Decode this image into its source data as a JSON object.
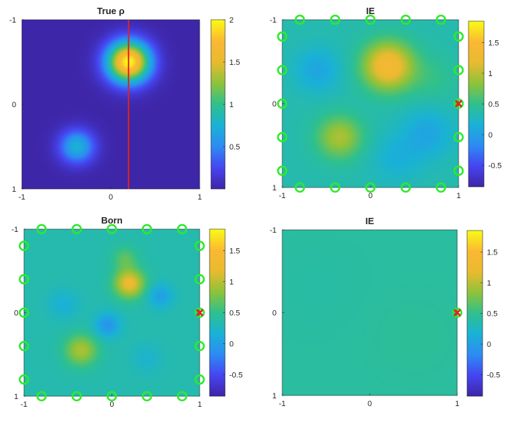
{
  "colors": {
    "parula": [
      "#3e26a8",
      "#4646f2",
      "#2d8cf3",
      "#1ab2d6",
      "#2fc08e",
      "#8dc33a",
      "#e9ba2f",
      "#fab834",
      "#f9fb15"
    ],
    "marker": "#2dea2d",
    "source": "#e0241c",
    "cut_line": "#e0241c"
  },
  "chart_data": [
    {
      "type": "heatmap",
      "title": "True ρ",
      "xticks": [
        "-1",
        "0",
        "1"
      ],
      "yticks": [
        "-1",
        "0",
        "1"
      ],
      "xlim": [
        -1,
        1
      ],
      "ylim": [
        -1,
        1
      ],
      "clim": [
        0,
        2
      ],
      "colorbar_ticks": [
        "0.5",
        "1",
        "1.5",
        "2"
      ],
      "blobs": [
        {
          "x": 0.2,
          "y": -0.5,
          "amp": 2.0,
          "sigma": 0.17
        },
        {
          "x": -0.38,
          "y": 0.5,
          "amp": 0.75,
          "sigma": 0.14
        }
      ],
      "vertical_line_x": 0.2
    },
    {
      "type": "heatmap",
      "title": "IE",
      "xticks": [
        "-1",
        "0",
        "1"
      ],
      "yticks": [
        "-1",
        "0",
        "1"
      ],
      "xlim": [
        -1,
        1
      ],
      "ylim": [
        -1,
        1
      ],
      "clim": [
        -0.85,
        1.85
      ],
      "colorbar_ticks": [
        "-0.5",
        "0",
        "0.5",
        "1",
        "1.5"
      ],
      "base": 0.35,
      "blobs": [
        {
          "x": 0.2,
          "y": -0.45,
          "amp": 1.05,
          "sigma": 0.2
        },
        {
          "x": -0.35,
          "y": 0.4,
          "amp": 0.6,
          "sigma": 0.18
        },
        {
          "x": -0.6,
          "y": -0.4,
          "amp": -0.3,
          "sigma": 0.18
        },
        {
          "x": 0.65,
          "y": 0.35,
          "amp": -0.3,
          "sigma": 0.2
        },
        {
          "x": 0.3,
          "y": 0.65,
          "amp": -0.2,
          "sigma": 0.2
        },
        {
          "x": 0.7,
          "y": -0.3,
          "amp": 0.15,
          "sigma": 0.2
        }
      ],
      "markers": [
        {
          "x": -0.8,
          "y": -1
        },
        {
          "x": -0.4,
          "y": -1
        },
        {
          "x": 0,
          "y": -1
        },
        {
          "x": 0.4,
          "y": -1
        },
        {
          "x": 0.8,
          "y": -1
        },
        {
          "x": -0.8,
          "y": 1
        },
        {
          "x": -0.4,
          "y": 1
        },
        {
          "x": 0,
          "y": 1
        },
        {
          "x": 0.4,
          "y": 1
        },
        {
          "x": 0.8,
          "y": 1
        },
        {
          "x": -1,
          "y": -0.8
        },
        {
          "x": -1,
          "y": -0.4
        },
        {
          "x": -1,
          "y": 0
        },
        {
          "x": -1,
          "y": 0.4
        },
        {
          "x": -1,
          "y": 0.8
        },
        {
          "x": 1,
          "y": -0.8
        },
        {
          "x": 1,
          "y": -0.4
        },
        {
          "x": 1,
          "y": 0.4
        },
        {
          "x": 1,
          "y": 0.8
        }
      ],
      "source": {
        "x": 1,
        "y": 0
      }
    },
    {
      "type": "heatmap",
      "title": "Born",
      "xticks": [
        "-1",
        "0",
        "1"
      ],
      "yticks": [
        "-1",
        "0",
        "1"
      ],
      "xlim": [
        -1,
        1
      ],
      "ylim": [
        -1,
        1
      ],
      "clim": [
        -0.85,
        1.85
      ],
      "colorbar_ticks": [
        "-0.5",
        "0",
        "0.5",
        "1",
        "1.5"
      ],
      "base": 0.35,
      "blobs": [
        {
          "x": 0.2,
          "y": -0.35,
          "amp": 0.9,
          "sigma": 0.12
        },
        {
          "x": 0.15,
          "y": -0.65,
          "amp": 0.3,
          "sigma": 0.1
        },
        {
          "x": -0.35,
          "y": 0.45,
          "amp": 0.6,
          "sigma": 0.13
        },
        {
          "x": -0.05,
          "y": 0.15,
          "amp": -0.45,
          "sigma": 0.1
        },
        {
          "x": 0.55,
          "y": -0.2,
          "amp": -0.35,
          "sigma": 0.1
        },
        {
          "x": -0.55,
          "y": -0.1,
          "amp": -0.2,
          "sigma": 0.12
        },
        {
          "x": 0.4,
          "y": 0.55,
          "amp": -0.15,
          "sigma": 0.12
        }
      ],
      "markers": [
        {
          "x": -0.8,
          "y": -1
        },
        {
          "x": -0.4,
          "y": -1
        },
        {
          "x": 0,
          "y": -1
        },
        {
          "x": 0.4,
          "y": -1
        },
        {
          "x": 0.8,
          "y": -1
        },
        {
          "x": -0.8,
          "y": 1
        },
        {
          "x": -0.4,
          "y": 1
        },
        {
          "x": 0,
          "y": 1
        },
        {
          "x": 0.4,
          "y": 1
        },
        {
          "x": 0.8,
          "y": 1
        },
        {
          "x": -1,
          "y": -0.8
        },
        {
          "x": -1,
          "y": -0.4
        },
        {
          "x": -1,
          "y": 0
        },
        {
          "x": -1,
          "y": 0.4
        },
        {
          "x": -1,
          "y": 0.8
        },
        {
          "x": 1,
          "y": -0.8
        },
        {
          "x": 1,
          "y": -0.4
        },
        {
          "x": 1,
          "y": 0.4
        },
        {
          "x": 1,
          "y": 0.8
        }
      ],
      "source": {
        "x": 1,
        "y": 0
      }
    },
    {
      "type": "heatmap",
      "title": "IE",
      "xticks": [
        "-1",
        "0",
        "1"
      ],
      "yticks": [
        "-1",
        "0",
        "1"
      ],
      "xlim": [
        -1,
        1
      ],
      "ylim": [
        -1,
        1
      ],
      "clim": [
        -0.85,
        1.85
      ],
      "colorbar_ticks": [
        "-0.5",
        "0",
        "0.5",
        "1",
        "1.5"
      ],
      "base": 0.42,
      "blobs": [
        {
          "x": 0.5,
          "y": 0.3,
          "amp": 0.04,
          "sigma": 0.35
        },
        {
          "x": -0.6,
          "y": -0.3,
          "amp": -0.03,
          "sigma": 0.35
        }
      ],
      "markers": [],
      "source": {
        "x": 1,
        "y": 0
      }
    }
  ]
}
